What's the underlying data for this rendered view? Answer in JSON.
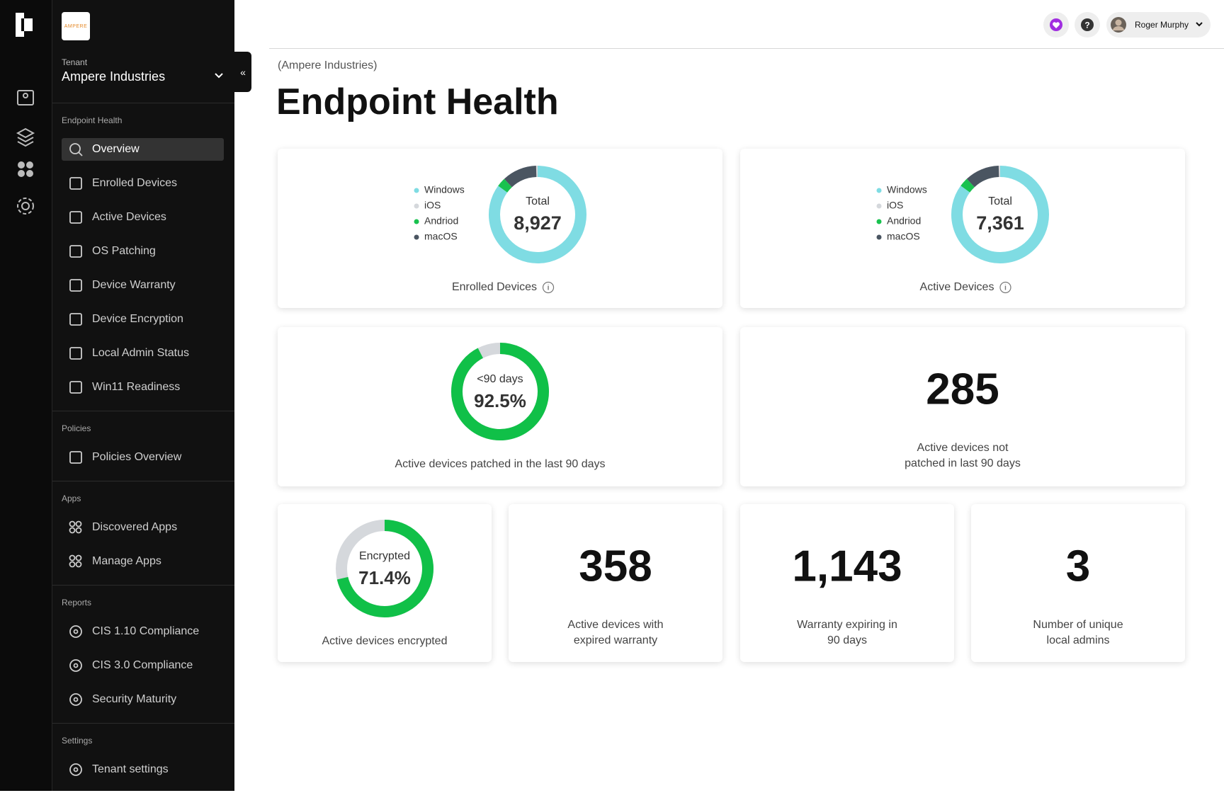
{
  "sidebar": {
    "logo": "AMPERE",
    "tenant_label": "Tenant",
    "tenant": "Ampere Industries",
    "sections": [
      {
        "title": "Endpoint Health",
        "items": [
          "Overview",
          "Enrolled Devices",
          "Active Devices",
          "OS Patching",
          "Device Warranty",
          "Device Encryption",
          "Local Admin Status",
          "Win11 Readiness"
        ]
      },
      {
        "title": "Policies",
        "items": [
          "Policies Overview"
        ]
      },
      {
        "title": "Apps",
        "items": [
          "Discovered Apps",
          "Manage Apps"
        ]
      },
      {
        "title": "Reports",
        "items": [
          "CIS 1.10 Compliance",
          "CIS 3.0 Compliance",
          "Security Maturity"
        ]
      },
      {
        "title": "Settings",
        "items": [
          "Tenant settings"
        ]
      }
    ]
  },
  "header": {
    "user": "Roger Murphy"
  },
  "page": {
    "breadcrumb": "(Ampere Industries)",
    "title": "Endpoint Health"
  },
  "cards": [
    {
      "type": "donut",
      "caption": "Enrolled Devices",
      "center_label": "Total",
      "total": 8927,
      "total_label": "8,927",
      "segments": [
        {
          "name": "Windows",
          "color": "#7fdce3",
          "value": 7588
        },
        {
          "name": "iOS",
          "color": "#d5d8dc",
          "value": 45
        },
        {
          "name": "Andriod",
          "color": "#19c24f",
          "value": 268
        },
        {
          "name": "macOS",
          "color": "#4a5561",
          "value": 1026
        }
      ]
    },
    {
      "type": "donut",
      "caption": "Active Devices",
      "center_label": "Total",
      "total": 7361,
      "total_label": "7,361",
      "segments": [
        {
          "name": "Windows",
          "color": "#7fdce3",
          "value": 6258
        },
        {
          "name": "iOS",
          "color": "#d5d8dc",
          "value": 37
        },
        {
          "name": "Andriod",
          "color": "#19c24f",
          "value": 221
        },
        {
          "name": "macOS",
          "color": "#4a5561",
          "value": 845
        }
      ]
    },
    {
      "type": "gauge",
      "caption": [
        "Active devices patched in the last 90 days"
      ],
      "center_label": "<90 days",
      "value": 92.5,
      "value_label": "92.5%",
      "lim": [
        0,
        100
      ],
      "color": "#10c048",
      "track_color": "#d5d8dc"
    },
    {
      "type": "stat",
      "value": 285,
      "caption": [
        "Active devices not",
        "patched in last 90 days"
      ]
    },
    {
      "type": "gauge",
      "caption": [
        "Active devices encrypted"
      ],
      "center_label": "Encrypted",
      "value": 71.4,
      "value_label": "71.4%",
      "lim": [
        0,
        100
      ],
      "color": "#10c048",
      "track_color": "#d5d8dc"
    },
    {
      "type": "stat",
      "value": 358,
      "caption": [
        "Active devices with",
        "expired warranty"
      ]
    },
    {
      "type": "stat",
      "value": 1143,
      "value_label": "1,143",
      "caption": [
        "Warranty expiring in",
        "90 days"
      ]
    },
    {
      "type": "stat",
      "value": 3,
      "caption": [
        "Number of unique",
        "local admins"
      ]
    }
  ]
}
